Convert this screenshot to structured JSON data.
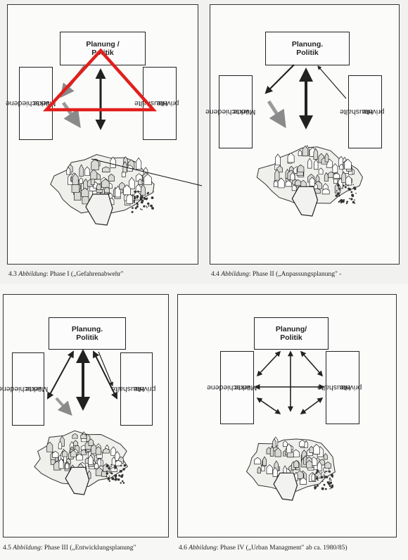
{
  "phases": [
    {
      "top_line1": "Planung /",
      "top_line2": "Politik",
      "left_line1": "verschiedene",
      "left_line2": "Märkte",
      "right_line1": "private",
      "right_line2": "Haushalte",
      "caption_num": "4.3",
      "caption_label": "Abbildung",
      "caption_text": ": Phase I („Gefahrenabwehr\""
    },
    {
      "top_line1": "Planung.",
      "top_line2": "Politik",
      "left_line1": "verschiedene",
      "left_line2": "Märkte",
      "right_line1": "private",
      "right_line2": "Haushalte",
      "caption_num": "4.4",
      "caption_label": "Abbildung",
      "caption_text": ": Phase II  („Anpassungsplanung\" -"
    },
    {
      "top_line1": "Planung.",
      "top_line2": "Politik",
      "left_line1": "verschiedene",
      "left_line2": "Märkte",
      "right_line1": "private",
      "right_line2": "Haushalte",
      "caption_num": "4.5",
      "caption_label": "Abbildung",
      "caption_text": ": Phase III  („Entwicklungsplanung\""
    },
    {
      "top_line1": "Planung/",
      "top_line2": "Politik",
      "left_line1": "verschiedene",
      "left_line2": "Märkte",
      "right_line1": "private",
      "right_line2": "Haushalte",
      "caption_num": "4.6",
      "caption_label": "Abbildung",
      "caption_text": ": Phase IV  („Urban Managment\" ab ca. 1980/85)"
    }
  ],
  "colors": {
    "annotation": "#e0201c",
    "ink": "#222222"
  },
  "icons": {
    "city": "medieval-town-sketch-icon"
  }
}
